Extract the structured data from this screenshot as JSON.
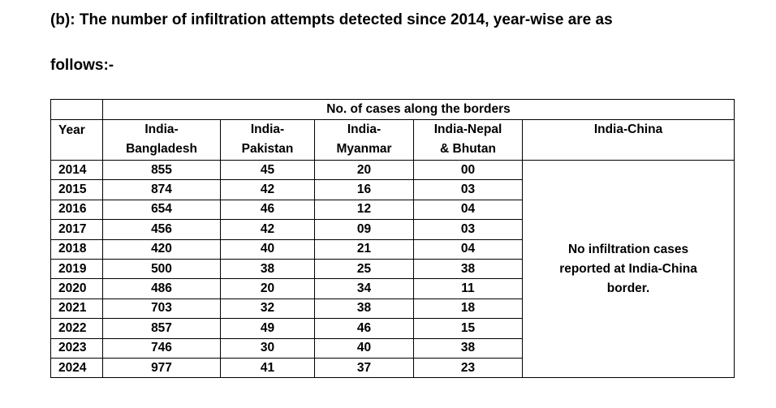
{
  "heading": {
    "line1": "(b): The number of infiltration attempts detected since 2014, year-wise are as",
    "line2": "follows:-"
  },
  "table": {
    "group_header": "No. of cases along the borders",
    "columns": {
      "year": "Year",
      "bangladesh_1": "India-",
      "bangladesh_2": "Bangladesh",
      "pakistan_1": "India-",
      "pakistan_2": "Pakistan",
      "myanmar_1": "India-",
      "myanmar_2": "Myanmar",
      "nepal_1": "India-Nepal",
      "nepal_2": "& Bhutan",
      "china": "India-China"
    },
    "china_note_1": "No infiltration cases",
    "china_note_2": "reported at India-China",
    "china_note_3": "border.",
    "rows": [
      {
        "year": "2014",
        "bangladesh": "855",
        "pakistan": "45",
        "myanmar": "20",
        "nepal": "00"
      },
      {
        "year": "2015",
        "bangladesh": "874",
        "pakistan": "42",
        "myanmar": "16",
        "nepal": "03"
      },
      {
        "year": "2016",
        "bangladesh": "654",
        "pakistan": "46",
        "myanmar": "12",
        "nepal": "04"
      },
      {
        "year": "2017",
        "bangladesh": "456",
        "pakistan": "42",
        "myanmar": "09",
        "nepal": "03"
      },
      {
        "year": "2018",
        "bangladesh": "420",
        "pakistan": "40",
        "myanmar": "21",
        "nepal": "04"
      },
      {
        "year": "2019",
        "bangladesh": "500",
        "pakistan": "38",
        "myanmar": "25",
        "nepal": "38"
      },
      {
        "year": "2020",
        "bangladesh": "486",
        "pakistan": "20",
        "myanmar": "34",
        "nepal": "11"
      },
      {
        "year": "2021",
        "bangladesh": "703",
        "pakistan": "32",
        "myanmar": "38",
        "nepal": "18"
      },
      {
        "year": "2022",
        "bangladesh": "857",
        "pakistan": "49",
        "myanmar": "46",
        "nepal": "15"
      },
      {
        "year": "2023",
        "bangladesh": "746",
        "pakistan": "30",
        "myanmar": "40",
        "nepal": "38"
      },
      {
        "year": "2024",
        "bangladesh": "977",
        "pakistan": "41",
        "myanmar": "37",
        "nepal": "23"
      }
    ]
  }
}
